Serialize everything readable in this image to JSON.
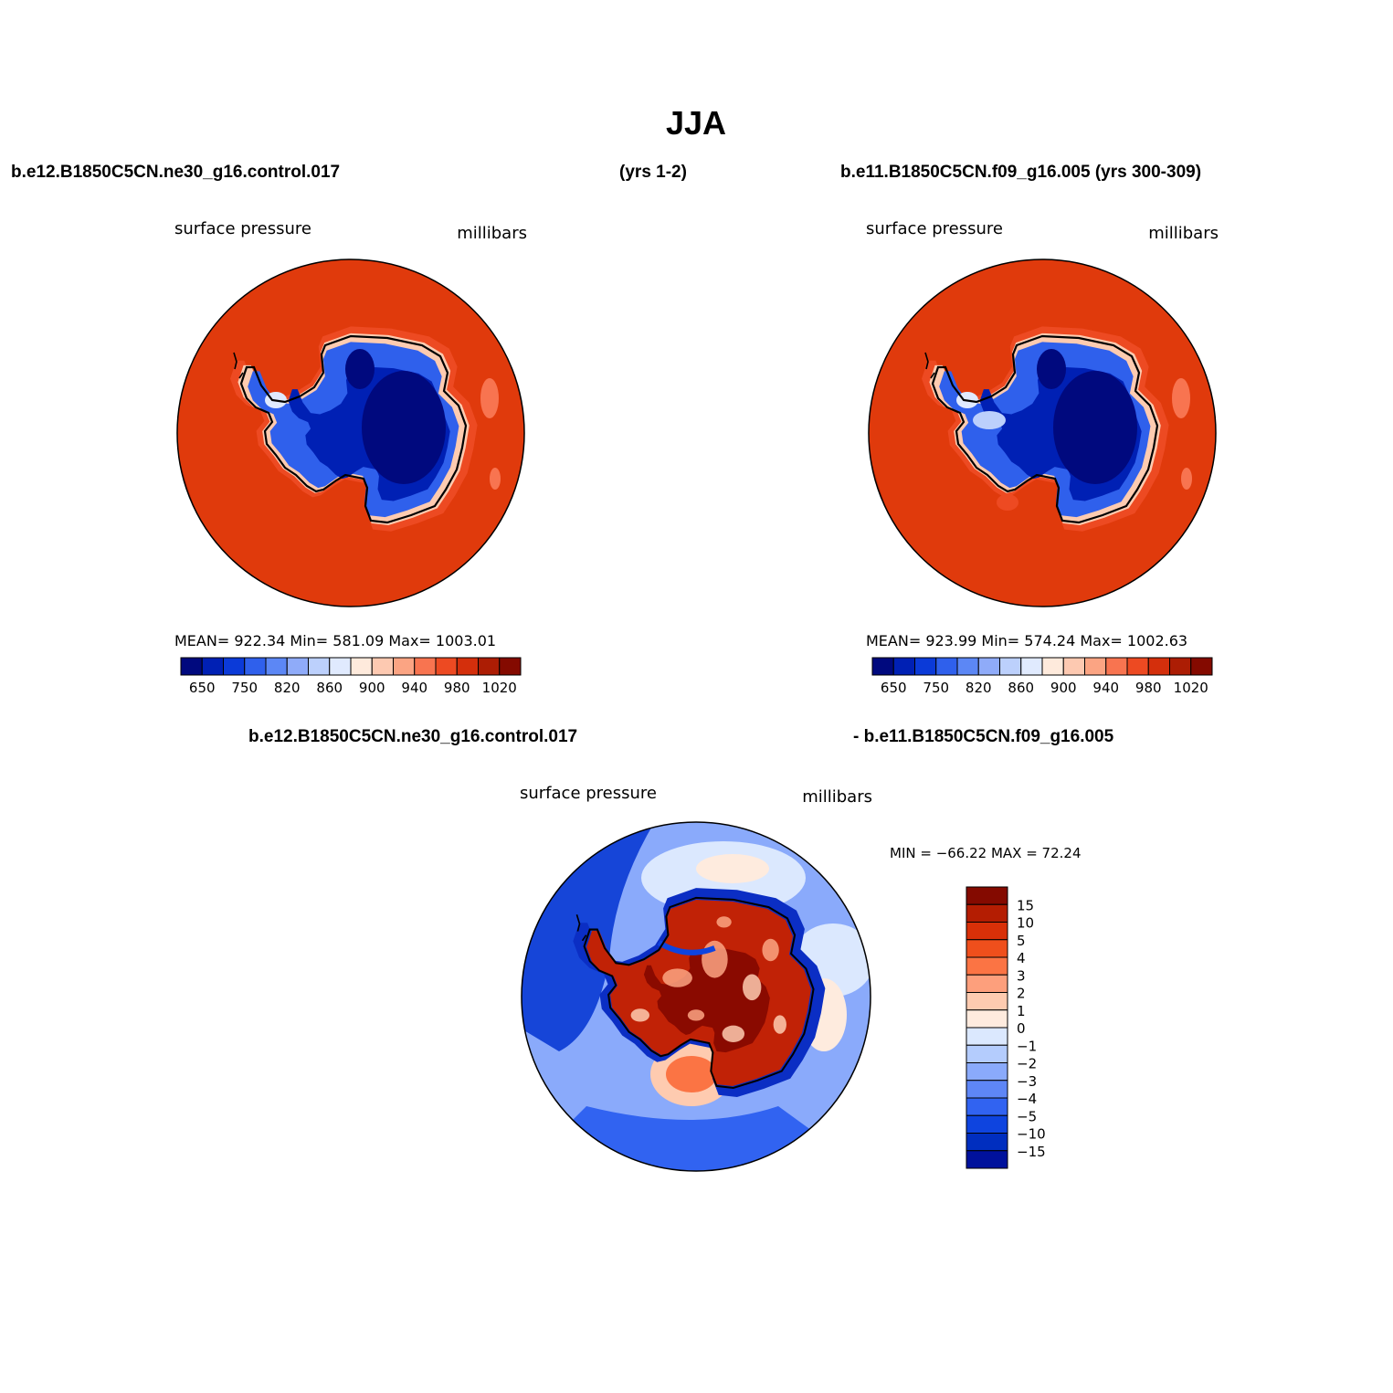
{
  "figure": {
    "title": "JJA",
    "top_left_header": "b.e12.B1850C5CN.ne30_g16.control.017",
    "top_mid_header": "(yrs 1-2)",
    "top_right_header": "b.e11.B1850C5CN.f09_g16.005 (yrs 300-309)",
    "bottom_left_header": "b.e12.B1850C5CN.ne30_g16.control.017",
    "bottom_right_header": "- b.e11.B1850C5CN.f09_g16.005"
  },
  "panels": [
    {
      "id": "left",
      "variable": "surface pressure",
      "units": "millibars",
      "stats": "MEAN=  922.34   Min=  581.09   Max=  1003.01"
    },
    {
      "id": "right",
      "variable": "surface pressure",
      "units": "millibars",
      "stats": "MEAN=  923.99   Min=  574.24   Max=  1002.63"
    },
    {
      "id": "diff",
      "variable": "surface pressure",
      "units": "millibars",
      "stats": "MIN = −66.22  MAX =   72.24"
    }
  ],
  "colorbars": {
    "abs": {
      "colors": [
        "#00097e",
        "#0020b4",
        "#0b3ad8",
        "#2f60ec",
        "#5c87f5",
        "#8fabf9",
        "#bcd0fc",
        "#e0eafe",
        "#feeadc",
        "#fdc9b1",
        "#fba483",
        "#f87450",
        "#ed4a22",
        "#d42f0c",
        "#ac1d04",
        "#840a00"
      ],
      "labels": [
        "650",
        "750",
        "820",
        "860",
        "900",
        "940",
        "980",
        "1020"
      ]
    },
    "diff": {
      "colors": [
        "#840a00",
        "#b41d02",
        "#d93008",
        "#ef4f1c",
        "#fb7444",
        "#fd9f7c",
        "#fecbb0",
        "#feebde",
        "#dbe8fe",
        "#b4ccfd",
        "#8aaafb",
        "#5e86f6",
        "#3163f1",
        "#0e44df",
        "#002ebf",
        "#00119c"
      ],
      "labels": [
        "15",
        "10",
        "5",
        "4",
        "3",
        "2",
        "1",
        "0",
        "−1",
        "−2",
        "−3",
        "−4",
        "−5",
        "−10",
        "−15"
      ]
    }
  },
  "maps": {
    "ocean_abs": "#e03a0c",
    "ocean_abs_edge": "#c42a08",
    "interior_abs": "#00097e",
    "plateau_abs": "#0020b4",
    "slope_abs": "#2f60ec",
    "coast_abs": "#fecbb0",
    "diff_land": "#c12206",
    "diff_land_dark": "#8a0a00",
    "diff_coast": "#0b2ec4",
    "diff_ocean_west": "#1645d8",
    "diff_ocean_mid": "#8aaafb",
    "diff_ocean_light": "#dbe8fe",
    "diff_ocean_pale": "#feebde"
  }
}
